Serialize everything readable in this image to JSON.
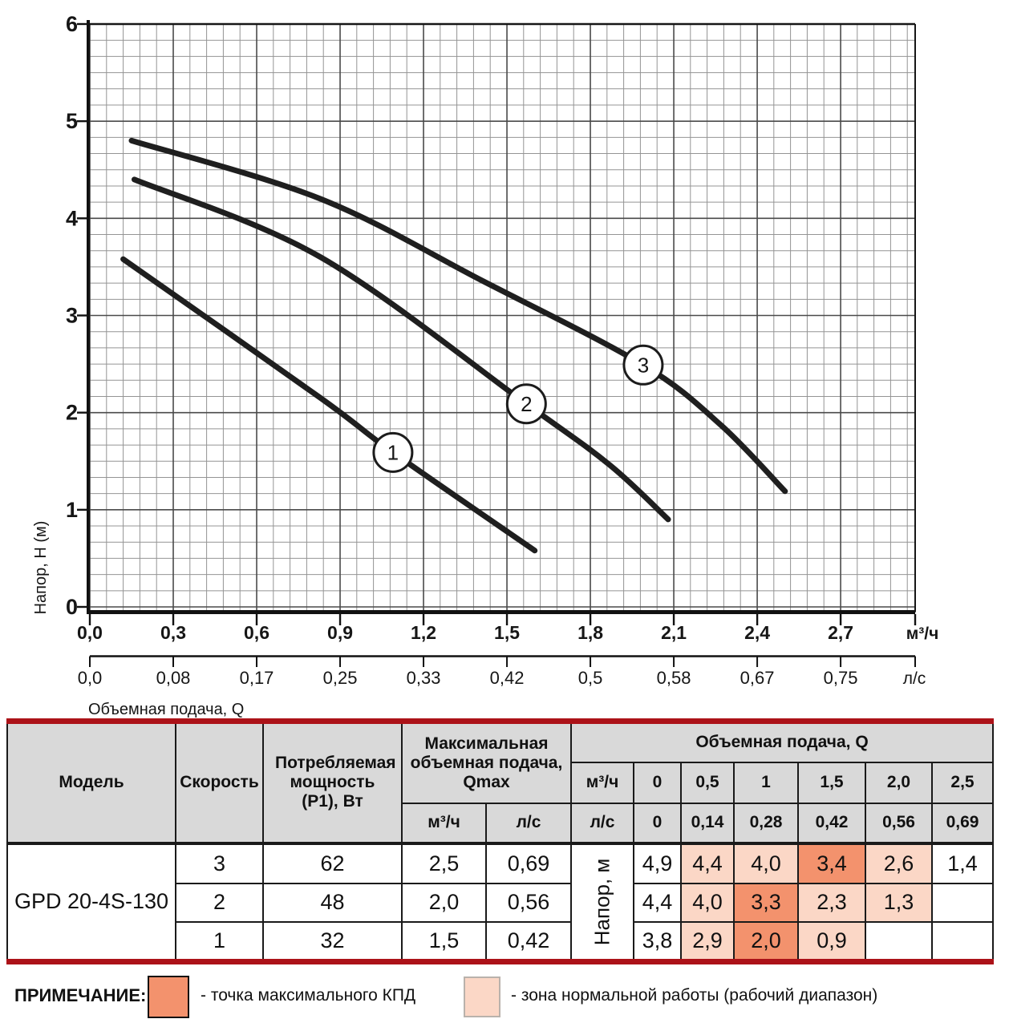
{
  "chart_data": {
    "type": "line",
    "title": "",
    "xlabel": "Объемная подача, Q",
    "ylabel": "Напор, H (м)",
    "x_unit_primary": "м³/ч",
    "x_unit_secondary": "л/с",
    "ylim": [
      0,
      6
    ],
    "xlim_m3h": [
      0,
      2.97
    ],
    "grid": true,
    "y_ticks": [
      "6",
      "5",
      "4",
      "3",
      "2",
      "1",
      "0"
    ],
    "x_ticks_m3h": [
      "0,0",
      "0,3",
      "0,6",
      "0,9",
      "1,2",
      "1,5",
      "1,8",
      "2,1",
      "2,4",
      "2,7"
    ],
    "x_ticks_ls": [
      "0,0",
      "0,08",
      "0,17",
      "0,25",
      "0,33",
      "0,42",
      "0,5",
      "0,58",
      "0,67",
      "0,75"
    ],
    "series": [
      {
        "name": "1",
        "speed": 1,
        "points_m3h_H": [
          [
            0.12,
            3.58
          ],
          [
            0.83,
            2.15
          ],
          [
            1.09,
            1.59
          ],
          [
            1.6,
            0.58
          ]
        ],
        "marker_at": [
          1.09,
          1.59
        ]
      },
      {
        "name": "2",
        "speed": 2,
        "points_m3h_H": [
          [
            0.16,
            4.4
          ],
          [
            0.83,
            3.6
          ],
          [
            1.57,
            2.09
          ],
          [
            1.87,
            1.46
          ],
          [
            2.08,
            0.9
          ]
        ],
        "marker_at": [
          1.57,
          2.09
        ]
      },
      {
        "name": "3",
        "speed": 3,
        "points_m3h_H": [
          [
            0.15,
            4.8
          ],
          [
            0.83,
            4.2
          ],
          [
            1.41,
            3.36
          ],
          [
            1.99,
            2.49
          ],
          [
            2.27,
            1.87
          ],
          [
            2.5,
            1.19
          ]
        ],
        "marker_at": [
          1.99,
          2.49
        ]
      }
    ]
  },
  "table": {
    "headers": {
      "model": "Модель",
      "speed": "Скорость",
      "power": "Потребляемая мощность (P1), Вт",
      "qmax": "Максимальная объемная подача, Qmax",
      "qmax_unit_m3h": "м³/ч",
      "qmax_unit_ls": "л/с",
      "flow_title": "Объемная подача, Q",
      "flow_m3h_label": "м³/ч",
      "flow_ls_label": "л/с",
      "flow_m3h_values": [
        "0",
        "0,5",
        "1",
        "1,5",
        "2,0",
        "2,5"
      ],
      "flow_ls_values": [
        "0",
        "0,14",
        "0,28",
        "0,42",
        "0,56",
        "0,69"
      ],
      "head_label": "Напор, м"
    },
    "model": "GPD 20-4S-130",
    "rows": [
      {
        "speed": "3",
        "power": "62",
        "qmax_m3h": "2,5",
        "qmax_ls": "0,69",
        "head": [
          {
            "v": "4,9",
            "z": "none"
          },
          {
            "v": "4,4",
            "z": "work"
          },
          {
            "v": "4,0",
            "z": "work"
          },
          {
            "v": "3,4",
            "z": "max"
          },
          {
            "v": "2,6",
            "z": "work"
          },
          {
            "v": "1,4",
            "z": "none"
          }
        ]
      },
      {
        "speed": "2",
        "power": "48",
        "qmax_m3h": "2,0",
        "qmax_ls": "0,56",
        "head": [
          {
            "v": "4,4",
            "z": "none"
          },
          {
            "v": "4,0",
            "z": "work"
          },
          {
            "v": "3,3",
            "z": "max"
          },
          {
            "v": "2,3",
            "z": "work"
          },
          {
            "v": "1,3",
            "z": "work"
          },
          {
            "v": "",
            "z": "none"
          }
        ]
      },
      {
        "speed": "1",
        "power": "32",
        "qmax_m3h": "1,5",
        "qmax_ls": "0,42",
        "head": [
          {
            "v": "3,8",
            "z": "none"
          },
          {
            "v": "2,9",
            "z": "work"
          },
          {
            "v": "2,0",
            "z": "max"
          },
          {
            "v": "0,9",
            "z": "work"
          },
          {
            "v": "",
            "z": "none"
          },
          {
            "v": "",
            "z": "none"
          }
        ]
      }
    ]
  },
  "note": {
    "title": "ПРИМЕЧАНИЕ:",
    "max_efficiency_label": "- точка максимального КПД",
    "work_zone_label": "- зона нормальной работы (рабочий диапазон)"
  },
  "colors": {
    "max_efficiency": "#f3926d",
    "work_zone": "#fbd7c6",
    "red_bar": "#ac1218",
    "header_grey": "#d9d9d9",
    "curve": "#1f1f1f",
    "grid_minor": "#949494",
    "grid_major": "#4a4a4a"
  }
}
